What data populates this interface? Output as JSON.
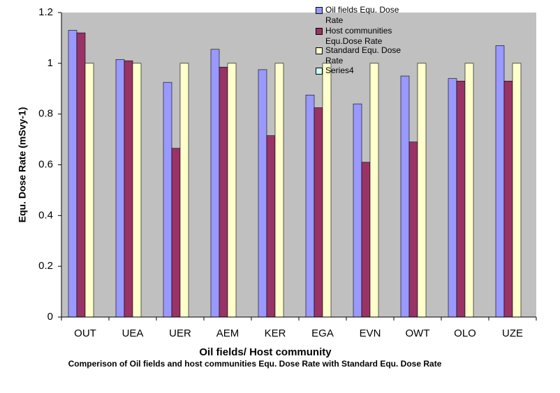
{
  "chart_data": {
    "type": "bar",
    "title": "Comperison of Oil fields and host communities Equ. Dose Rate with Standard Equ. Dose Rate",
    "x_label": "Oil fields/ Host community",
    "y_label": "Equ. Dose Rate (mSvy-1)",
    "categories": [
      "OUT",
      "UEA",
      "UER",
      "AEM",
      "KER",
      "EGA",
      "EVN",
      "OWT",
      "OLO",
      "UZE"
    ],
    "series": [
      {
        "name": "Oil fields Equ. Dose Rate",
        "color": "#9999ff",
        "values": [
          1.13,
          1.015,
          0.925,
          1.055,
          0.975,
          0.875,
          0.84,
          0.95,
          0.94,
          1.07
        ]
      },
      {
        "name": "Host communities Equ.Dose Rate",
        "color": "#993366",
        "values": [
          1.12,
          1.01,
          0.665,
          0.985,
          0.715,
          0.825,
          0.61,
          0.69,
          0.93,
          0.93
        ]
      },
      {
        "name": "Standard Equ. Dose Rate",
        "color": "#ffffcc",
        "values": [
          1,
          1,
          1,
          1,
          1,
          1,
          1,
          1,
          1,
          1
        ]
      },
      {
        "name": "Series4",
        "color": "#ccffff",
        "values": [
          null,
          null,
          null,
          null,
          null,
          null,
          null,
          null,
          null,
          null
        ]
      }
    ],
    "ylim": [
      0,
      1.2
    ],
    "yticks": [
      0,
      0.2,
      0.4,
      0.6,
      0.8,
      1,
      1.2
    ],
    "grid": false,
    "legend": "top-right",
    "background": "#c0c0c0"
  }
}
